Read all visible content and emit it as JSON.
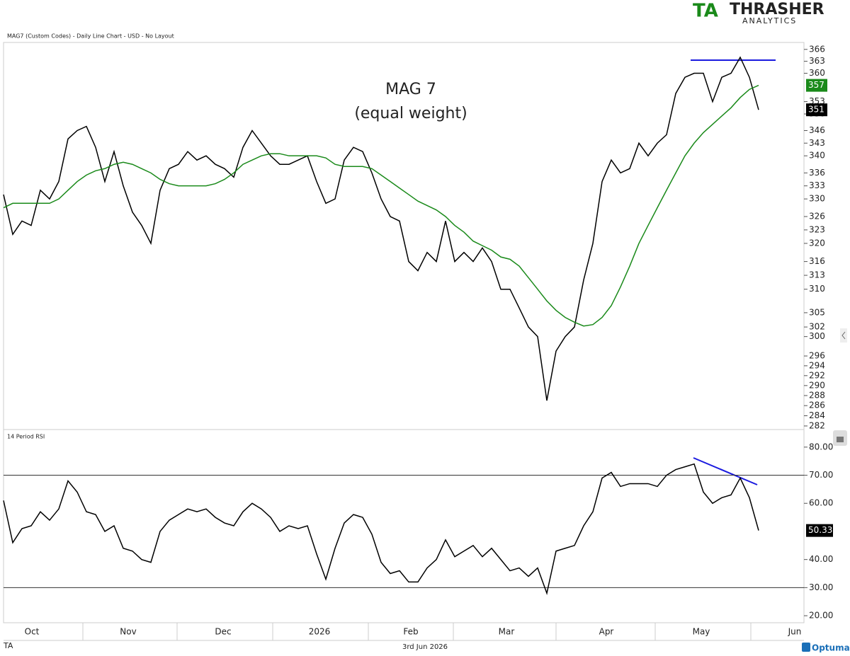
{
  "logo": {
    "mark": "TA",
    "name": "THRASHER",
    "sub": "ANALYTICS"
  },
  "header": "MAG7 (Custom Codes) - Daily Line Chart - USD - No Layout",
  "footer": {
    "date": "3rd Jun 2026",
    "brand": "Optuma",
    "mark": "TA"
  },
  "x_axis": {
    "labels": [
      "Oct",
      "Nov",
      "Dec",
      "2026",
      "Feb",
      "Mar",
      "Apr",
      "May",
      "Jun"
    ]
  },
  "chart_data": [
    {
      "type": "line",
      "title": "MAG 7",
      "subtitle": "(equal weight)",
      "log_scale": true,
      "ylim": [
        281.3,
        367.4
      ],
      "yticks": [
        366,
        363,
        360,
        353,
        350,
        346,
        343,
        340,
        336,
        333,
        330,
        326,
        323,
        320,
        316,
        313,
        310,
        305,
        302,
        300,
        296,
        294,
        292,
        290,
        288,
        286,
        284,
        282
      ],
      "series": [
        {
          "color": "#000000",
          "values": [
            331,
            322,
            325,
            324,
            332,
            330,
            334,
            344,
            346,
            347,
            342,
            334,
            341,
            333,
            327,
            324,
            320,
            332,
            337,
            338,
            341,
            339,
            340,
            338,
            337,
            335,
            342,
            346,
            343,
            340,
            338,
            338,
            339,
            340,
            334,
            329,
            330,
            339,
            342,
            341,
            336,
            330,
            326,
            325,
            316,
            314,
            318,
            316,
            325,
            316,
            318,
            316,
            319,
            316,
            310,
            310,
            306,
            302,
            300,
            287,
            297,
            300,
            302,
            312,
            320,
            334,
            339,
            336,
            337,
            343,
            340,
            343,
            345,
            355,
            359,
            360,
            360,
            353,
            359,
            360,
            364,
            359,
            351
          ]
        },
        {
          "color": "#1a8a1a",
          "values": [
            328,
            329,
            329,
            329,
            329,
            329,
            330,
            332,
            334,
            335.5,
            336.5,
            337,
            338,
            338.5,
            338,
            337,
            336,
            334.5,
            333.5,
            333,
            333,
            333,
            333,
            333.5,
            334.5,
            336,
            338,
            339,
            340,
            340.5,
            340.5,
            340,
            340,
            340,
            340,
            339.5,
            338,
            337.5,
            337.5,
            337.5,
            337,
            335.5,
            334,
            332.5,
            331,
            329.5,
            328.5,
            327.5,
            326,
            324,
            322.5,
            320.5,
            319.5,
            318.5,
            317,
            316.5,
            315,
            312.5,
            310,
            307.5,
            305.5,
            304,
            303,
            302.2,
            302.5,
            304,
            306.5,
            310.5,
            315,
            320,
            324,
            328,
            332,
            336,
            340,
            343,
            345.5,
            347.5,
            349.5,
            351.5,
            354,
            356,
            357
          ]
        }
      ]
    },
    {
      "type": "line",
      "title": "14 Period RSI",
      "ylim": [
        17.5,
        86
      ],
      "yticks": [
        {
          "value": 80,
          "label": "80.00"
        },
        {
          "value": 70,
          "label": "70.00"
        },
        {
          "value": 60,
          "label": "60.00"
        },
        {
          "value": 40,
          "label": "40.00"
        },
        {
          "value": 30,
          "label": "30.00"
        },
        {
          "value": 20,
          "label": "20.00"
        }
      ],
      "hlines": [
        70,
        30
      ],
      "series": [
        {
          "color": "#000000",
          "values": [
            61,
            46,
            51,
            52,
            57,
            54,
            58,
            68,
            64,
            57,
            56,
            50,
            52,
            44,
            43,
            40,
            39,
            50,
            54,
            56,
            58,
            57,
            58,
            55,
            53,
            52,
            57,
            60,
            58,
            55,
            50,
            52,
            51,
            52,
            42,
            33,
            44,
            53,
            56,
            55,
            49,
            39,
            35,
            36,
            32,
            32,
            37,
            40,
            47,
            41,
            43,
            45,
            41,
            44,
            40,
            36,
            37,
            34,
            37,
            28,
            43,
            44,
            45,
            52,
            57,
            69,
            71,
            66,
            67,
            67,
            67,
            66,
            70,
            72,
            73,
            74,
            64,
            60,
            62,
            63,
            69,
            62,
            50.33
          ]
        }
      ]
    }
  ]
}
